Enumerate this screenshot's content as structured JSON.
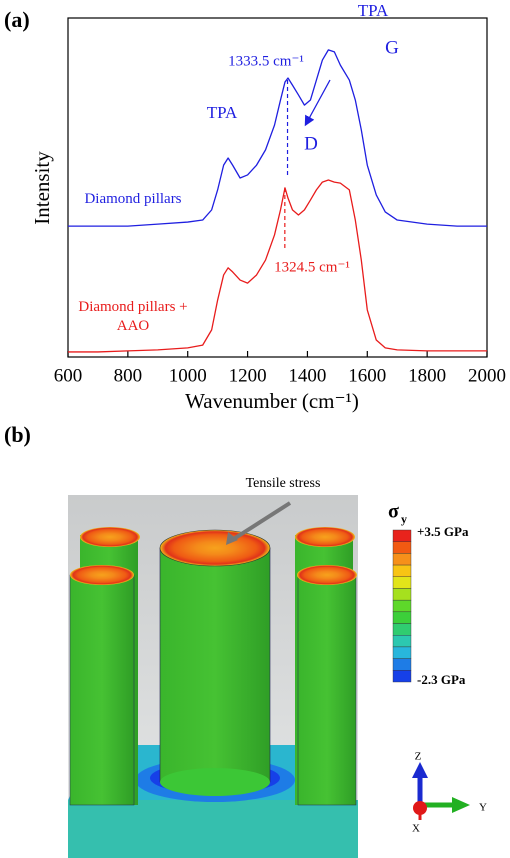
{
  "panel_labels": [
    "(a)",
    "(b)"
  ],
  "chart_data": {
    "type": "line",
    "xlabel": "Wavenumber (cm⁻¹)",
    "ylabel": "Intensity",
    "x": [
      600,
      700,
      800,
      900,
      1000,
      1050,
      1080,
      1100,
      1120,
      1135,
      1150,
      1175,
      1200,
      1230,
      1260,
      1290,
      1310,
      1325,
      1335,
      1350,
      1370,
      1390,
      1410,
      1430,
      1450,
      1470,
      1490,
      1510,
      1540,
      1560,
      1580,
      1600,
      1630,
      1660,
      1700,
      1800,
      1900,
      2000
    ],
    "xlim": [
      600,
      2000
    ],
    "xticks": [
      600,
      800,
      1000,
      1200,
      1400,
      1600,
      1800,
      2000
    ],
    "ylim": [
      0,
      100
    ],
    "series": [
      {
        "name": "Diamond pillars",
        "color": "#1f1fe0",
        "values": [
          38.6,
          38.6,
          38.6,
          39.2,
          39.8,
          40.4,
          43.4,
          49.3,
          56.6,
          58.7,
          56.6,
          52.8,
          53.7,
          56.6,
          61.1,
          68.4,
          75.8,
          81.1,
          82.3,
          80.2,
          77.3,
          74.3,
          75.8,
          81.7,
          87.6,
          90.6,
          90.0,
          86.1,
          81.7,
          75.8,
          67.0,
          56.6,
          47.8,
          42.8,
          40.4,
          39.2,
          38.6,
          38.6
        ]
      },
      {
        "name": "Diamond pillars + AAO",
        "color": "#e81c1c",
        "values": [
          1.5,
          1.5,
          1.8,
          2.1,
          2.7,
          3.5,
          8.0,
          16.8,
          24.2,
          26.3,
          25.1,
          22.7,
          21.8,
          24.2,
          28.6,
          36.0,
          43.4,
          49.9,
          46.9,
          43.4,
          41.9,
          43.4,
          46.3,
          49.3,
          51.6,
          52.2,
          51.6,
          51.3,
          49.3,
          40.4,
          28.6,
          13.9,
          5.0,
          2.7,
          2.1,
          1.8,
          1.8,
          1.8
        ]
      }
    ],
    "annotations": [
      {
        "text": "TPA",
        "color": "#1f1fe0"
      },
      {
        "text": "TPA",
        "color": "#1f1fe0"
      },
      {
        "text": "G",
        "color": "#1f1fe0"
      },
      {
        "text": "D",
        "color": "#1f1fe0"
      }
    ],
    "peak_markers": [
      {
        "x": 1333.5,
        "label": "1333.5 cm⁻¹",
        "color": "#1f1fe0"
      },
      {
        "x": 1324.5,
        "label": "1324.5 cm⁻¹",
        "color": "#e81c1c"
      }
    ]
  },
  "panel_b": {
    "callout": "Tensile stress",
    "colorbar_title": "σ",
    "colorbar_subscript": "y",
    "colorbar_max_label": "+3.5 GPa",
    "colorbar_min_label": "-2.3 GPa",
    "colorbar_colors": [
      "#e8231c",
      "#f25a12",
      "#f6901a",
      "#f8c414",
      "#e2e41a",
      "#a6e01e",
      "#5ed82a",
      "#3ccf3a",
      "#30cc70",
      "#2cc8b0",
      "#28b6dc",
      "#1e7ce6",
      "#1640e8"
    ],
    "axes": [
      "Z",
      "Y",
      "X"
    ]
  }
}
